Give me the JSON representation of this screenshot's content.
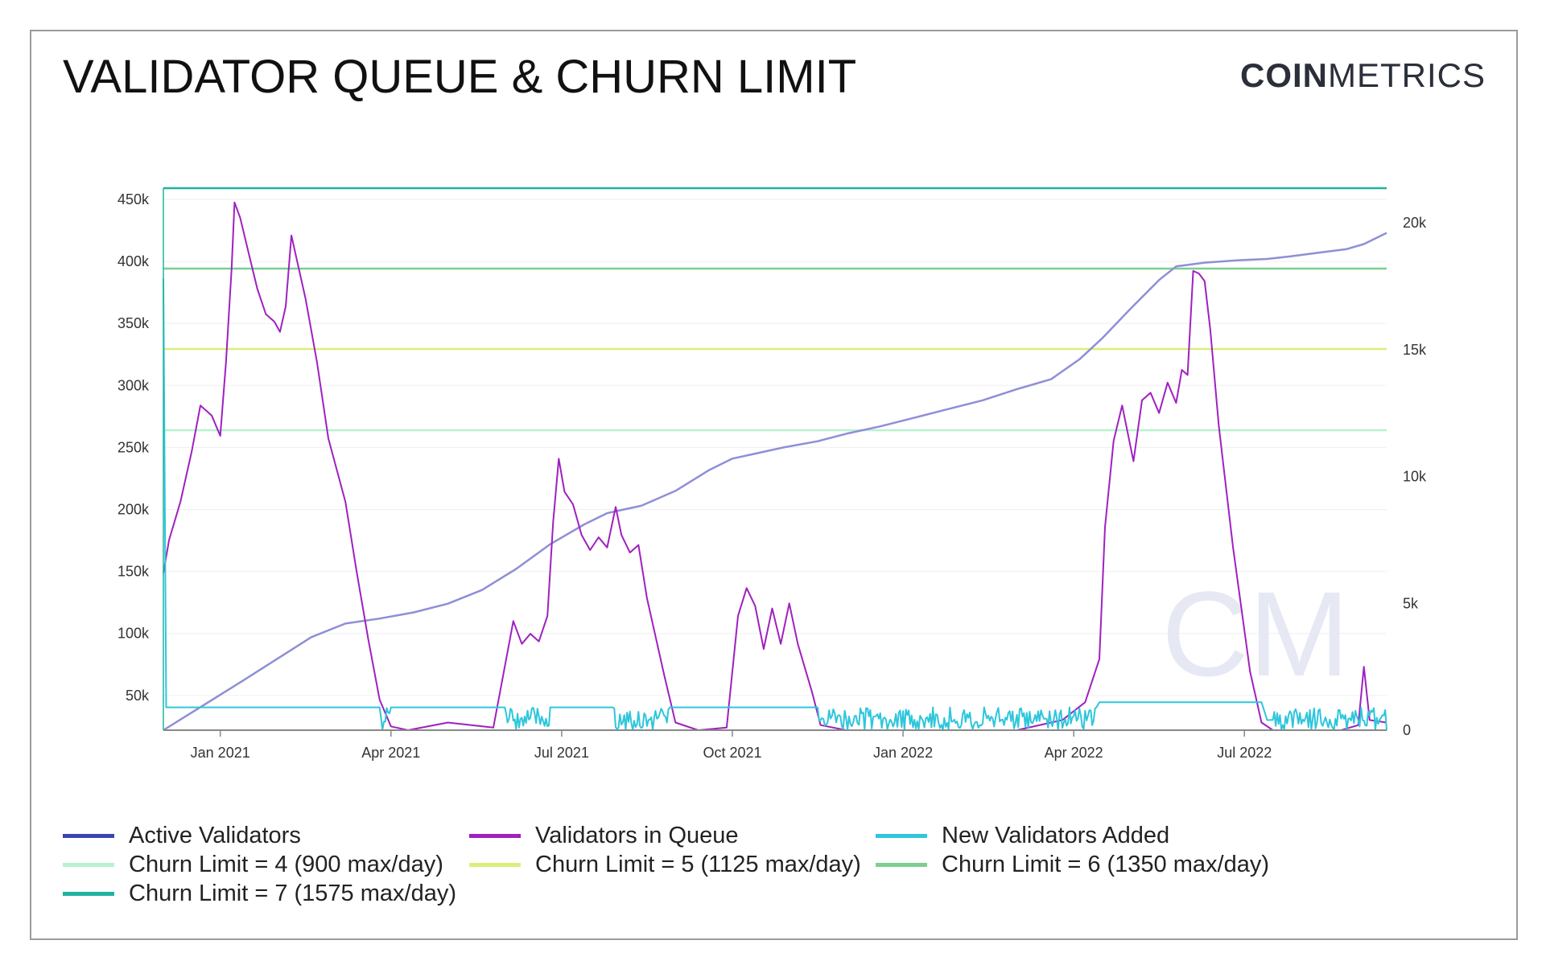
{
  "header": {
    "title": "VALIDATOR QUEUE & CHURN LIMIT",
    "brand_bold": "COIN",
    "brand_light": "METRICS",
    "watermark": "CM"
  },
  "colors": {
    "active": "#8e8fd6",
    "queue": "#a020c0",
    "new": "#2ec6dc",
    "churn4": "#b8f2cf",
    "churn5": "#d8f07a",
    "churn6": "#7ccf8e",
    "churn7": "#1fb3a0",
    "legend_active": "#3a44b5",
    "legend_queue": "#a020c0",
    "legend_new": "#2ec6dc"
  },
  "chart_data": {
    "type": "line",
    "title": "VALIDATOR QUEUE & CHURN LIMIT",
    "x_ticks": [
      "Jan 2021",
      "Apr 2021",
      "Jul 2021",
      "Oct 2021",
      "Jan 2022",
      "Apr 2022",
      "Jul 2022"
    ],
    "x_range_index": [
      -1,
      20.5
    ],
    "x_tick_index": [
      0,
      3,
      6,
      9,
      12,
      15,
      18
    ],
    "y_left_ticks": [
      "50k",
      "100k",
      "150k",
      "200k",
      "250k",
      "300k",
      "350k",
      "400k",
      "450k"
    ],
    "y_left_range": [
      22000,
      450000
    ],
    "y_right_ticks": [
      "0",
      "5k",
      "10k",
      "15k",
      "20k"
    ],
    "y_right_range": [
      0,
      21000
    ],
    "churn_limits": [
      {
        "name": "Churn Limit = 4 (900 max/day)",
        "value": 900,
        "axis": "right",
        "color": "churn4"
      },
      {
        "name": "Churn Limit = 5 (1125 max/day)",
        "value": 1125,
        "axis": "right",
        "color": "churn5"
      },
      {
        "name": "Churn Limit = 6 (1350 max/day)",
        "value": 1350,
        "axis": "right",
        "color": "churn6"
      },
      {
        "name": "Churn Limit = 7 (1575 max/day)",
        "value": 1575,
        "axis": "right",
        "color": "churn7"
      }
    ],
    "series": [
      {
        "name": "Active Validators",
        "axis": "left",
        "color": "active",
        "points": [
          [
            -1,
            22000
          ],
          [
            0.4,
            62000
          ],
          [
            1.6,
            97000
          ],
          [
            2.2,
            108000
          ],
          [
            2.8,
            112000
          ],
          [
            3.4,
            117000
          ],
          [
            4.0,
            124000
          ],
          [
            4.6,
            135000
          ],
          [
            5.2,
            152000
          ],
          [
            5.8,
            172000
          ],
          [
            6.4,
            188000
          ],
          [
            6.8,
            197000
          ],
          [
            7.4,
            203000
          ],
          [
            8.0,
            215000
          ],
          [
            8.6,
            232000
          ],
          [
            9.0,
            241000
          ],
          [
            9.4,
            245000
          ],
          [
            9.9,
            250000
          ],
          [
            10.5,
            255000
          ],
          [
            11.0,
            261000
          ],
          [
            11.6,
            267000
          ],
          [
            12.2,
            274000
          ],
          [
            12.8,
            281000
          ],
          [
            13.4,
            288000
          ],
          [
            14.0,
            297000
          ],
          [
            14.6,
            305000
          ],
          [
            15.1,
            321000
          ],
          [
            15.5,
            338000
          ],
          [
            16.0,
            362000
          ],
          [
            16.5,
            385000
          ],
          [
            16.8,
            396000
          ],
          [
            17.3,
            399000
          ],
          [
            17.9,
            401000
          ],
          [
            18.4,
            402000
          ],
          [
            18.8,
            404000
          ],
          [
            19.3,
            407000
          ],
          [
            19.8,
            410000
          ],
          [
            20.1,
            414000
          ],
          [
            20.5,
            423000
          ]
        ]
      },
      {
        "name": "Validators in Queue",
        "axis": "right",
        "color": "queue",
        "points": [
          [
            -1,
            6200
          ],
          [
            -0.9,
            7500
          ],
          [
            -0.7,
            9000
          ],
          [
            -0.5,
            11000
          ],
          [
            -0.35,
            12800
          ],
          [
            -0.15,
            12400
          ],
          [
            0.0,
            11600
          ],
          [
            0.1,
            14500
          ],
          [
            0.2,
            18200
          ],
          [
            0.25,
            20800
          ],
          [
            0.35,
            20200
          ],
          [
            0.5,
            18800
          ],
          [
            0.65,
            17400
          ],
          [
            0.8,
            16400
          ],
          [
            0.95,
            16100
          ],
          [
            1.05,
            15700
          ],
          [
            1.15,
            16700
          ],
          [
            1.25,
            19500
          ],
          [
            1.35,
            18500
          ],
          [
            1.5,
            17000
          ],
          [
            1.7,
            14500
          ],
          [
            1.9,
            11500
          ],
          [
            2.2,
            9000
          ],
          [
            2.4,
            6200
          ],
          [
            2.6,
            3600
          ],
          [
            2.8,
            1200
          ],
          [
            3.0,
            150
          ],
          [
            3.3,
            0
          ],
          [
            4.0,
            300
          ],
          [
            4.8,
            100
          ],
          [
            5.0,
            2500
          ],
          [
            5.15,
            4300
          ],
          [
            5.3,
            3400
          ],
          [
            5.45,
            3800
          ],
          [
            5.6,
            3500
          ],
          [
            5.75,
            4500
          ],
          [
            5.85,
            8200
          ],
          [
            5.95,
            10700
          ],
          [
            6.05,
            9400
          ],
          [
            6.2,
            8900
          ],
          [
            6.35,
            7700
          ],
          [
            6.5,
            7100
          ],
          [
            6.65,
            7600
          ],
          [
            6.8,
            7200
          ],
          [
            6.95,
            8800
          ],
          [
            7.05,
            7700
          ],
          [
            7.2,
            7000
          ],
          [
            7.35,
            7300
          ],
          [
            7.5,
            5200
          ],
          [
            7.8,
            2200
          ],
          [
            8.0,
            300
          ],
          [
            8.4,
            0
          ],
          [
            8.9,
            100
          ],
          [
            9.1,
            4500
          ],
          [
            9.25,
            5600
          ],
          [
            9.4,
            4900
          ],
          [
            9.55,
            3200
          ],
          [
            9.7,
            4800
          ],
          [
            9.85,
            3400
          ],
          [
            10.0,
            5000
          ],
          [
            10.15,
            3400
          ],
          [
            10.4,
            1500
          ],
          [
            10.55,
            200
          ],
          [
            11.0,
            0
          ],
          [
            14.0,
            0
          ],
          [
            14.8,
            400
          ],
          [
            15.2,
            1100
          ],
          [
            15.45,
            2800
          ],
          [
            15.55,
            8000
          ],
          [
            15.7,
            11400
          ],
          [
            15.85,
            12800
          ],
          [
            16.05,
            10600
          ],
          [
            16.2,
            13000
          ],
          [
            16.35,
            13300
          ],
          [
            16.5,
            12500
          ],
          [
            16.65,
            13700
          ],
          [
            16.8,
            12900
          ],
          [
            16.9,
            14200
          ],
          [
            17.0,
            14000
          ],
          [
            17.1,
            18100
          ],
          [
            17.2,
            18000
          ],
          [
            17.3,
            17700
          ],
          [
            17.4,
            15800
          ],
          [
            17.55,
            12000
          ],
          [
            17.8,
            7200
          ],
          [
            18.1,
            2300
          ],
          [
            18.3,
            300
          ],
          [
            18.5,
            0
          ],
          [
            19.7,
            0
          ],
          [
            20.0,
            200
          ],
          [
            20.1,
            2500
          ],
          [
            20.2,
            400
          ],
          [
            20.5,
            300
          ]
        ]
      },
      {
        "name": "New Validators Added",
        "axis": "right",
        "color": "new",
        "points": [
          [
            -1,
            17800
          ],
          [
            -0.95,
            900
          ],
          [
            3.5,
            900
          ],
          [
            5.0,
            900
          ],
          [
            6.5,
            900
          ],
          [
            8.0,
            900
          ],
          [
            10.0,
            900
          ],
          [
            12.0,
            900
          ],
          [
            14.0,
            900
          ],
          [
            15.4,
            900
          ],
          [
            15.45,
            1100
          ],
          [
            16.5,
            1100
          ],
          [
            17.5,
            1100
          ],
          [
            18.3,
            1100
          ],
          [
            18.4,
            400
          ],
          [
            18.5,
            0
          ],
          [
            20.5,
            0
          ]
        ]
      }
    ]
  },
  "legend": {
    "items": [
      {
        "label": "Active Validators",
        "color": "legend_active"
      },
      {
        "label": "Validators in Queue",
        "color": "legend_queue"
      },
      {
        "label": "New Validators Added",
        "color": "legend_new"
      },
      {
        "label": "Churn Limit = 4 (900 max/day)",
        "color": "churn4"
      },
      {
        "label": "Churn Limit = 5 (1125 max/day)",
        "color": "churn5"
      },
      {
        "label": "Churn Limit = 6 (1350 max/day)",
        "color": "churn6"
      },
      {
        "label": "Churn Limit = 7 (1575 max/day)",
        "color": "churn7"
      }
    ]
  }
}
